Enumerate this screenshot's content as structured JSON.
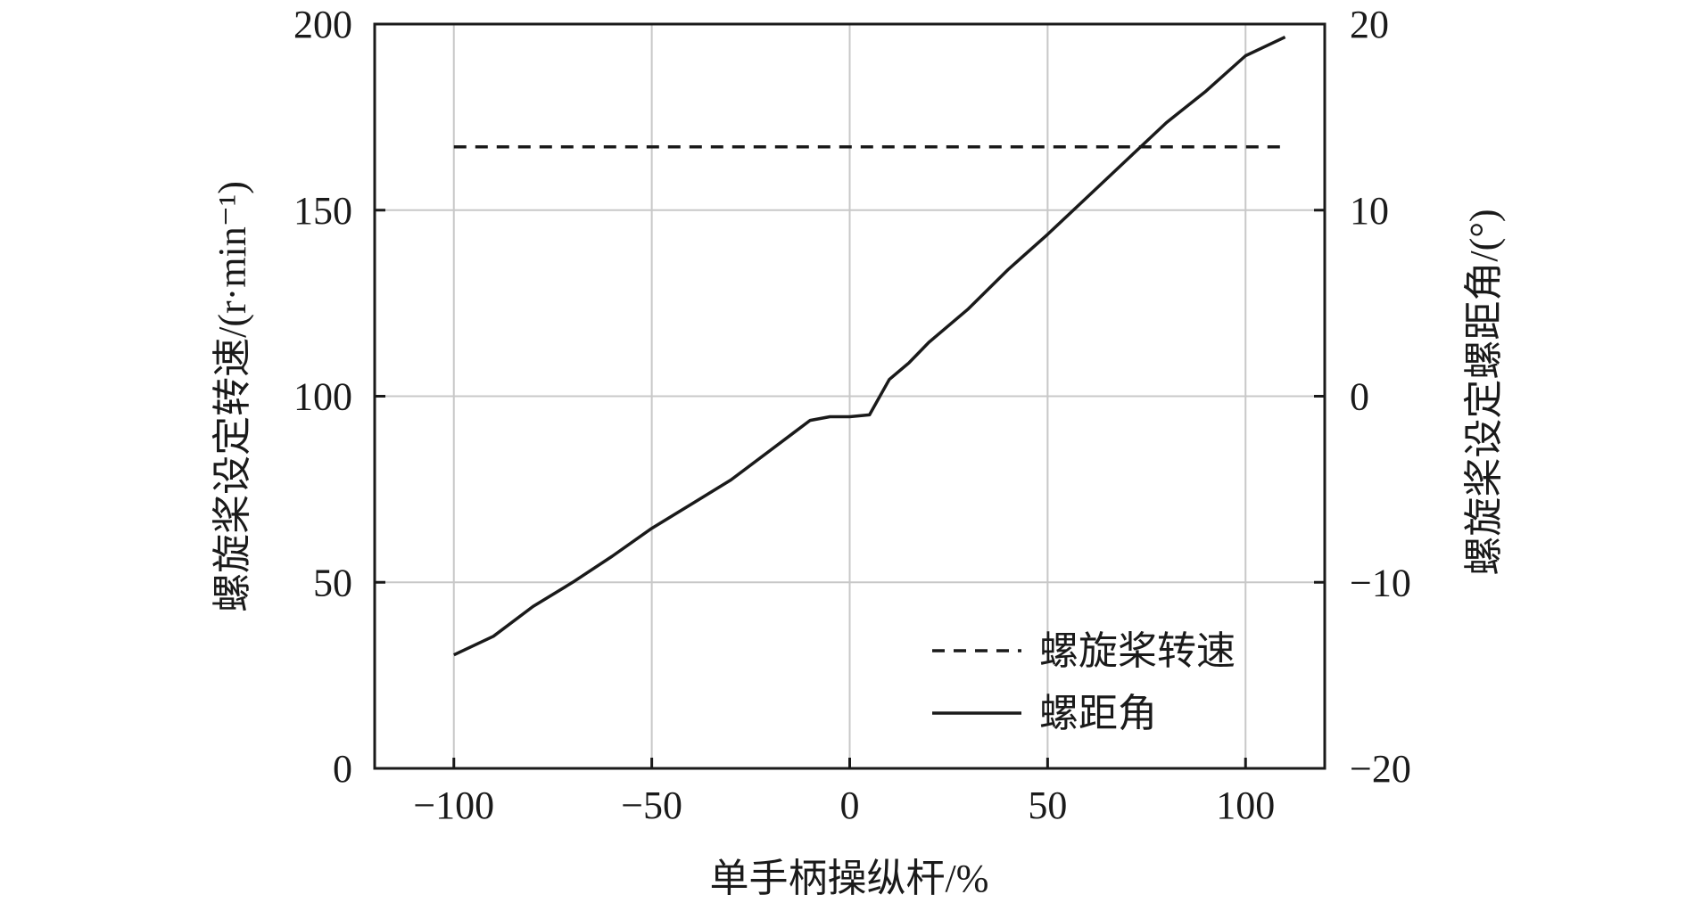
{
  "chart_data": {
    "type": "line",
    "xlabel": "单手柄操纵杆/%",
    "ylabel_left": "螺旋桨设定转速/(r·min⁻¹)",
    "ylabel_right": "螺旋桨设定螺距角/(°)",
    "xlim": [
      -120,
      120
    ],
    "ylim_left": [
      0,
      200
    ],
    "ylim_right": [
      -20,
      20
    ],
    "x_ticks": [
      -100,
      -50,
      0,
      50,
      100
    ],
    "x_tick_labels": [
      "−100",
      "−50",
      "0",
      "50",
      "100"
    ],
    "y_left_ticks": [
      0,
      50,
      100,
      150,
      200
    ],
    "y_left_tick_labels": [
      "0",
      "50",
      "100",
      "150",
      "200"
    ],
    "y_right_ticks": [
      -20,
      -10,
      0,
      10,
      20
    ],
    "y_right_tick_labels": [
      "−20",
      "−10",
      "0",
      "10",
      "20"
    ],
    "grid": true,
    "legend_position": "bottom-right",
    "series": [
      {
        "name": "螺旋桨转速",
        "axis": "left",
        "style": "dashed",
        "color": "#1a1a1a",
        "x": [
          -100,
          110
        ],
        "y": [
          167,
          167
        ]
      },
      {
        "name": "螺距角",
        "axis": "right",
        "style": "solid",
        "color": "#1a1a1a",
        "x": [
          -100,
          -90,
          -80,
          -70,
          -60,
          -50,
          -40,
          -30,
          -20,
          -10,
          -5,
          0,
          5,
          10,
          15,
          20,
          30,
          40,
          50,
          60,
          70,
          80,
          90,
          100,
          110
        ],
        "y": [
          -13.9,
          -12.9,
          -11.3,
          -10.0,
          -8.6,
          -7.1,
          -5.8,
          -4.5,
          -2.9,
          -1.3,
          -1.1,
          -1.1,
          -1.0,
          0.9,
          1.8,
          2.9,
          4.7,
          6.8,
          8.7,
          10.7,
          12.7,
          14.7,
          16.4,
          18.3,
          19.3
        ]
      }
    ]
  }
}
